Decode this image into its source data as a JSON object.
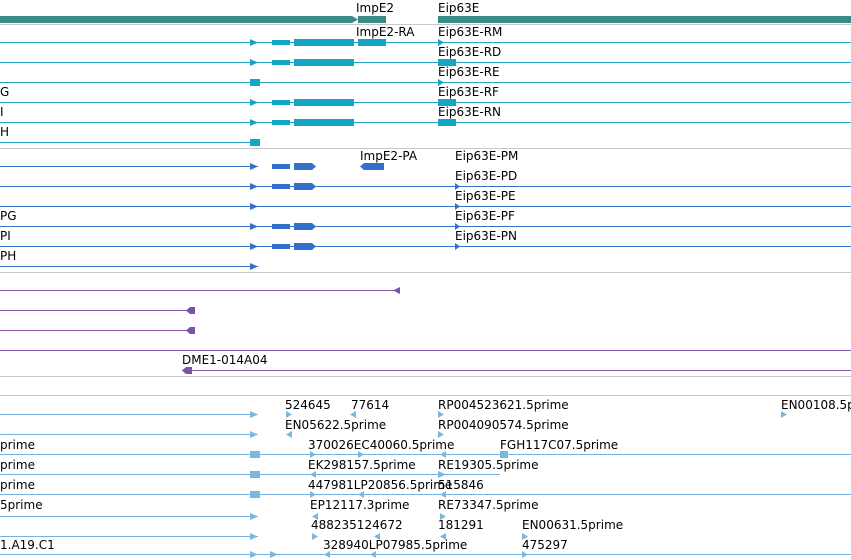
{
  "colors": {
    "gene_track": "#3a8a88",
    "transcript_line": "#2aa3c0",
    "transcript_box": "#14a7c5",
    "protein_line": "#3574c4",
    "protein_box": "#3370cc",
    "clone_line": "#8a5aa6",
    "clone_box": "#7a52a8",
    "est_line": "#7ab0e0",
    "est_box": "#7ab8e0",
    "separator": "#c8c8c8"
  },
  "genes": {
    "impe2": "ImpE2",
    "eip63e": "Eip63E"
  },
  "transcripts": {
    "impe2_ra": "ImpE2-RA",
    "eip_rm": "Eip63E-RM",
    "eip_rd": "Eip63E-RD",
    "eip_re": "Eip63E-RE",
    "eip_rf": "Eip63E-RF",
    "eip_rn": "Eip63E-RN",
    "left_g": "G",
    "left_i": "I",
    "left_h": "H"
  },
  "proteins": {
    "impe2_pa": "ImpE2-PA",
    "eip_pm": "Eip63E-PM",
    "eip_pd": "Eip63E-PD",
    "eip_pe": "Eip63E-PE",
    "eip_pf": "Eip63E-PF",
    "eip_pn": "Eip63E-PN",
    "left_pg": "PG",
    "left_pi": "PI",
    "left_ph": "PH"
  },
  "clones": {
    "dme1": "DME1-014A04"
  },
  "ests": {
    "e1": "524645",
    "e2": "77614",
    "e3": "RP004523621.5prime",
    "e4": "EN00108.5p",
    "e5": "EN05622.5prime",
    "e6": "RP004090574.5prime",
    "e7": "prime",
    "e8": "370026EC40060.5prime",
    "e9": "FGH117C07.5prime",
    "e10": "prime",
    "e11": "EK298157.5prime",
    "e12": "RE19305.5prime",
    "e13": "prime",
    "e14": "447981LP20856.5prime",
    "e15": "515846",
    "e16": "5prime",
    "e17": "EP12117.3prime",
    "e18": "RE73347.5prime",
    "e19": "488235124672",
    "e20": "181291",
    "e21": "EN00631.5prime",
    "e22": "1.A19.C1",
    "e23": "328940LP07985.5prime",
    "e24": "475297"
  }
}
